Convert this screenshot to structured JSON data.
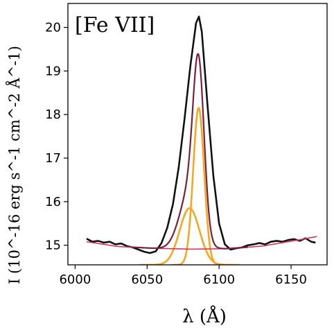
{
  "chart_data": {
    "type": "line",
    "panel_label": "[Fe VII]",
    "xlabel": "λ (Å)",
    "ylabel": "I (10^-16 erg s^-1 cm^-2 Å^-1)",
    "xlim": [
      5995,
      6175
    ],
    "ylim": [
      14.55,
      20.55
    ],
    "x_ticks": [
      6000,
      6050,
      6100,
      6150
    ],
    "y_ticks": [
      15,
      16,
      17,
      18,
      19,
      20
    ],
    "grid": false,
    "line_colors": {
      "observed": "#111111",
      "total_fit": "#7a1f3d",
      "continuum": "#d9345a",
      "components": "#f5a623"
    },
    "continuum": {
      "x": [
        6008,
        6030,
        6055,
        6080,
        6105,
        6130,
        6155,
        6168
      ],
      "y": [
        15.08,
        14.97,
        14.93,
        14.91,
        14.92,
        14.98,
        15.12,
        15.2
      ]
    },
    "components": [
      {
        "center": 6079.5,
        "sigma": 6.9,
        "amplitude": 1.3
      },
      {
        "center": 6085.8,
        "sigma": 3.8,
        "amplitude": 3.6
      }
    ],
    "observed": {
      "x": [
        6008,
        6012,
        6016,
        6020,
        6024,
        6028,
        6032,
        6036,
        6040,
        6044,
        6048,
        6052,
        6056,
        6060,
        6064,
        6068,
        6072,
        6076,
        6080,
        6084,
        6086,
        6088,
        6092,
        6096,
        6100,
        6104,
        6108,
        6112,
        6116,
        6120,
        6124,
        6128,
        6132,
        6136,
        6140,
        6144,
        6148,
        6152,
        6156,
        6160,
        6164,
        6167
      ],
      "y": [
        15.15,
        15.08,
        15.1,
        15.06,
        15.08,
        15.02,
        15.04,
        14.98,
        14.95,
        14.9,
        14.85,
        14.82,
        14.86,
        15.05,
        15.4,
        15.95,
        16.8,
        17.9,
        19.1,
        20.1,
        20.25,
        19.9,
        18.2,
        16.6,
        15.5,
        15.02,
        14.9,
        14.93,
        14.95,
        15.0,
        15.02,
        15.05,
        15.02,
        15.08,
        15.1,
        15.08,
        15.12,
        15.14,
        15.1,
        15.16,
        15.08,
        15.06
      ]
    }
  }
}
